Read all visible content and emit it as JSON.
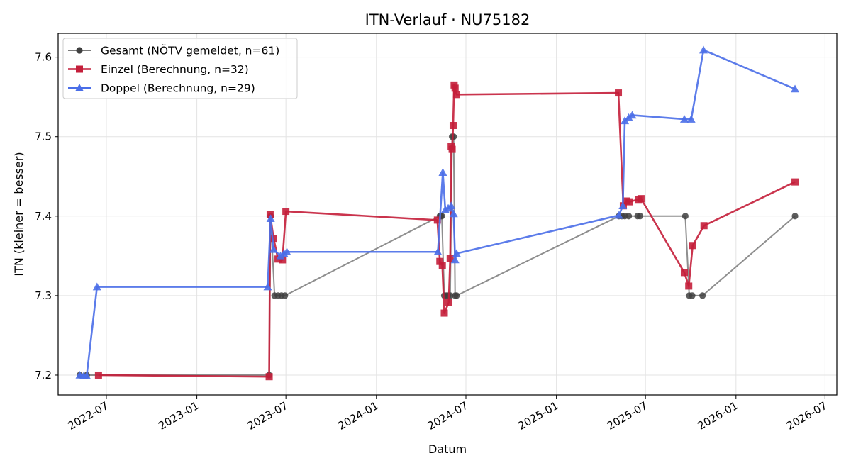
{
  "chart_data": {
    "type": "line",
    "title": "ITN-Verlauf · NU75182",
    "xlabel": "Datum",
    "ylabel": "ITN  (kleiner = besser)",
    "x_axis_type": "date",
    "xlim": [
      "2022-03-25",
      "2026-07-25"
    ],
    "ylim": [
      7.175,
      7.63
    ],
    "x_ticks": [
      "2022-07-01",
      "2023-01-01",
      "2023-07-01",
      "2024-01-01",
      "2024-07-01",
      "2025-01-01",
      "2025-07-01",
      "2026-01-01",
      "2026-07-01"
    ],
    "x_tick_labels": [
      "2022-07",
      "2023-01",
      "2023-07",
      "2024-01",
      "2024-07",
      "2025-01",
      "2025-07",
      "2026-01",
      "2026-07"
    ],
    "y_ticks": [
      7.2,
      7.3,
      7.4,
      7.5,
      7.6
    ],
    "y_tick_labels": [
      "7.2",
      "7.3",
      "7.4",
      "7.5",
      "7.6"
    ],
    "grid": true,
    "legend_position": "top-left",
    "series": [
      {
        "name": "Gesamt (NÖTV gemeldet, n=61)",
        "color": "#7a7a7a",
        "marker_color": "#404040",
        "marker": "circle",
        "points": [
          [
            "2022-05-08",
            7.2
          ],
          [
            "2022-05-22",
            7.2
          ],
          [
            "2023-05-28",
            7.2
          ],
          [
            "2023-05-31",
            7.4
          ],
          [
            "2023-06-08",
            7.3
          ],
          [
            "2023-06-15",
            7.3
          ],
          [
            "2023-06-22",
            7.3
          ],
          [
            "2023-06-29",
            7.3
          ],
          [
            "2024-05-09",
            7.4
          ],
          [
            "2024-05-11",
            7.4
          ],
          [
            "2024-05-13",
            7.4
          ],
          [
            "2024-05-18",
            7.3
          ],
          [
            "2024-05-22",
            7.3
          ],
          [
            "2024-05-26",
            7.3
          ],
          [
            "2024-05-30",
            7.3
          ],
          [
            "2024-06-03",
            7.5
          ],
          [
            "2024-06-06",
            7.5
          ],
          [
            "2024-06-09",
            7.3
          ],
          [
            "2024-06-12",
            7.3
          ],
          [
            "2025-05-08",
            7.4
          ],
          [
            "2025-05-14",
            7.4
          ],
          [
            "2025-05-20",
            7.4
          ],
          [
            "2025-05-28",
            7.4
          ],
          [
            "2025-06-15",
            7.4
          ],
          [
            "2025-06-20",
            7.4
          ],
          [
            "2025-09-20",
            7.4
          ],
          [
            "2025-09-28",
            7.3
          ],
          [
            "2025-10-04",
            7.3
          ],
          [
            "2025-10-25",
            7.3
          ],
          [
            "2026-05-01",
            7.4
          ]
        ]
      },
      {
        "name": "Einzel (Berechnung, n=32)",
        "color": "#c41e3a",
        "marker_color": "#c41e3a",
        "marker": "square",
        "points": [
          [
            "2022-06-15",
            7.2
          ],
          [
            "2023-05-28",
            7.198
          ],
          [
            "2023-05-30",
            7.402
          ],
          [
            "2023-06-06",
            7.372
          ],
          [
            "2023-06-15",
            7.346
          ],
          [
            "2023-06-24",
            7.345
          ],
          [
            "2023-07-01",
            7.406
          ],
          [
            "2024-05-04",
            7.395
          ],
          [
            "2024-05-09",
            7.343
          ],
          [
            "2024-05-14",
            7.338
          ],
          [
            "2024-05-18",
            7.278
          ],
          [
            "2024-05-27",
            7.291
          ],
          [
            "2024-05-30",
            7.347
          ],
          [
            "2024-06-01",
            7.488
          ],
          [
            "2024-06-03",
            7.484
          ],
          [
            "2024-06-05",
            7.514
          ],
          [
            "2024-06-07",
            7.565
          ],
          [
            "2024-06-09",
            7.561
          ],
          [
            "2024-06-12",
            7.553
          ],
          [
            "2025-05-07",
            7.555
          ],
          [
            "2025-05-17",
            7.413
          ],
          [
            "2025-05-23",
            7.419
          ],
          [
            "2025-05-29",
            7.418
          ],
          [
            "2025-06-17",
            7.421
          ],
          [
            "2025-06-22",
            7.422
          ],
          [
            "2025-09-18",
            7.329
          ],
          [
            "2025-09-27",
            7.312
          ],
          [
            "2025-10-05",
            7.363
          ],
          [
            "2025-10-28",
            7.388
          ],
          [
            "2026-05-01",
            7.443
          ]
        ]
      },
      {
        "name": "Doppel (Berechnung, n=29)",
        "color": "#4a6ee8",
        "marker_color": "#4a6ee8",
        "marker": "triangle",
        "points": [
          [
            "2022-05-08",
            7.2
          ],
          [
            "2022-05-16",
            7.199
          ],
          [
            "2022-05-22",
            7.199
          ],
          [
            "2022-06-12",
            7.311
          ],
          [
            "2023-05-25",
            7.311
          ],
          [
            "2023-05-31",
            7.397
          ],
          [
            "2023-06-06",
            7.358
          ],
          [
            "2023-06-20",
            7.35
          ],
          [
            "2023-06-27",
            7.353
          ],
          [
            "2023-07-03",
            7.355
          ],
          [
            "2024-05-05",
            7.355
          ],
          [
            "2024-05-15",
            7.455
          ],
          [
            "2024-05-20",
            7.408
          ],
          [
            "2024-05-26",
            7.41
          ],
          [
            "2024-06-01",
            7.413
          ],
          [
            "2024-06-06",
            7.403
          ],
          [
            "2024-06-09",
            7.345
          ],
          [
            "2024-06-12",
            7.353
          ],
          [
            "2025-05-08",
            7.401
          ],
          [
            "2025-05-16",
            7.413
          ],
          [
            "2025-05-20",
            7.52
          ],
          [
            "2025-05-28",
            7.524
          ],
          [
            "2025-06-04",
            7.527
          ],
          [
            "2025-09-18",
            7.522
          ],
          [
            "2025-10-02",
            7.522
          ],
          [
            "2025-10-27",
            7.609
          ],
          [
            "2026-05-01",
            7.56
          ]
        ]
      }
    ]
  }
}
